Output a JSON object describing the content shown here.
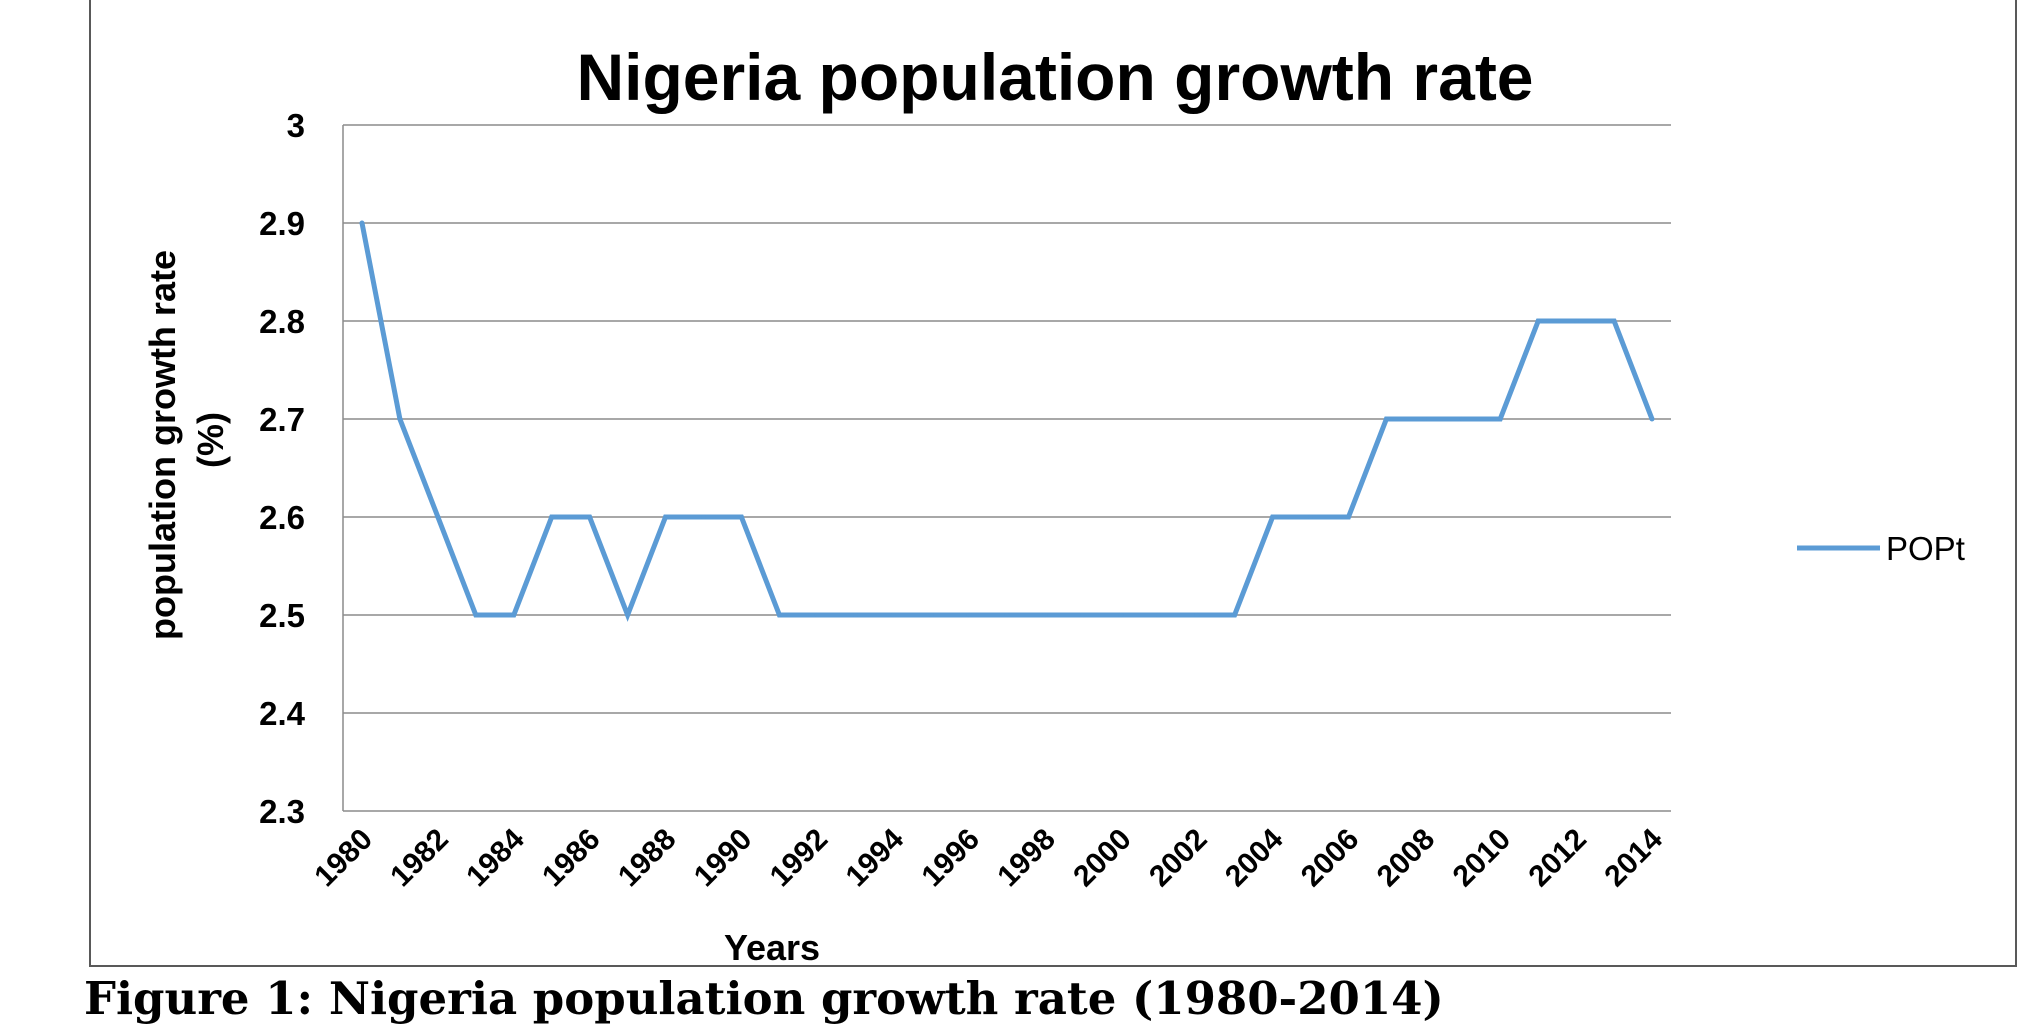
{
  "caption": "Figure 1: Nigeria population growth rate (1980-2014)",
  "colors": {
    "series": "#5b9bd5",
    "grid": "#8c8c8c",
    "axis": "#8c8c8c",
    "frame": "#595959",
    "text": "#000000"
  },
  "chart_data": {
    "type": "line",
    "title": "Nigeria population growth rate",
    "xlabel": "Years",
    "ylabel_lines": [
      "population growth rate",
      "(%)"
    ],
    "x": [
      1980,
      1981,
      1982,
      1983,
      1984,
      1985,
      1986,
      1987,
      1988,
      1989,
      1990,
      1991,
      1992,
      1993,
      1994,
      1995,
      1996,
      1997,
      1998,
      1999,
      2000,
      2001,
      2002,
      2003,
      2004,
      2005,
      2006,
      2007,
      2008,
      2009,
      2010,
      2011,
      2012,
      2013,
      2014
    ],
    "x_ticks": [
      "1980",
      "1982",
      "1984",
      "1986",
      "1988",
      "1990",
      "1992",
      "1994",
      "1996",
      "1998",
      "2000",
      "2002",
      "2004",
      "2006",
      "2008",
      "2010",
      "2012",
      "2014"
    ],
    "y_ticks": [
      "2.3",
      "2.4",
      "2.5",
      "2.6",
      "2.7",
      "2.8",
      "2.9",
      "3"
    ],
    "ylim": [
      2.3,
      3.0
    ],
    "grid": true,
    "legend_position": "right",
    "series": [
      {
        "name": "POPt",
        "values": [
          2.9,
          2.7,
          2.6,
          2.5,
          2.5,
          2.6,
          2.6,
          2.5,
          2.6,
          2.6,
          2.6,
          2.5,
          2.5,
          2.5,
          2.5,
          2.5,
          2.5,
          2.5,
          2.5,
          2.5,
          2.5,
          2.5,
          2.5,
          2.5,
          2.6,
          2.6,
          2.6,
          2.7,
          2.7,
          2.7,
          2.7,
          2.8,
          2.8,
          2.8,
          2.7
        ]
      }
    ]
  }
}
